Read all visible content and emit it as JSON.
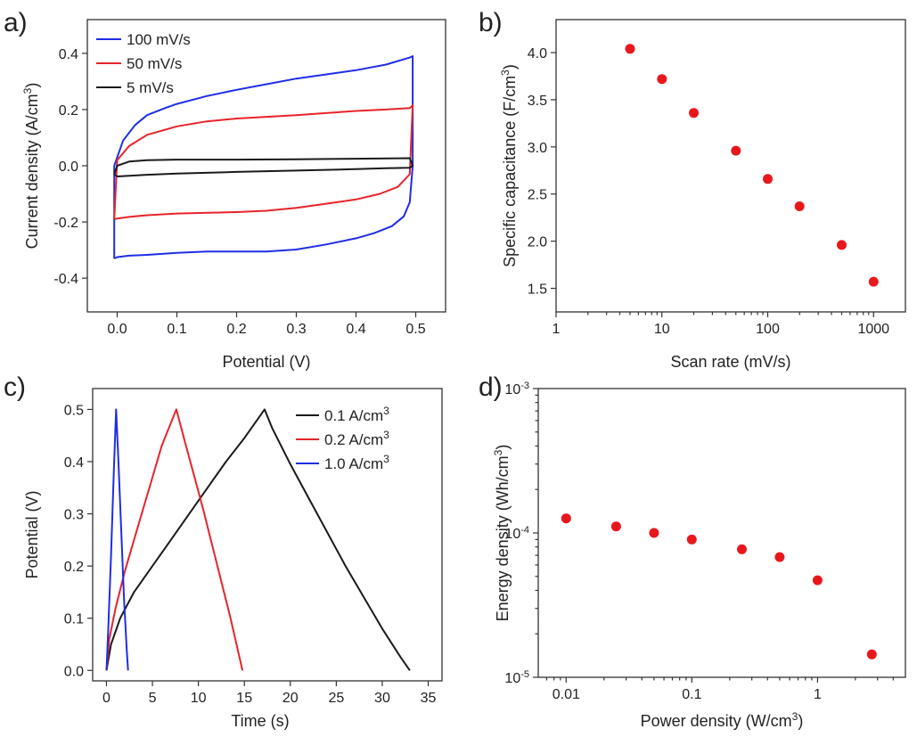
{
  "chart_data": [
    {
      "panel": "a)",
      "type": "line",
      "xlabel": "Potential (V)",
      "ylabel": "Current density (A/cm3)",
      "xlim": [
        -0.05,
        0.55
      ],
      "ylim": [
        -0.52,
        0.52
      ],
      "xticks": [
        "0.0",
        "0.1",
        "0.2",
        "0.3",
        "0.4",
        "0.5"
      ],
      "yticks": [
        "-0.4",
        "-0.2",
        "0.0",
        "0.2",
        "0.4"
      ],
      "legend_position": "top-left",
      "series": [
        {
          "name": "100 mV/s",
          "color": "#1f2de6",
          "x": [
            -0.005,
            -0.005,
            0.01,
            0.03,
            0.05,
            0.08,
            0.1,
            0.15,
            0.2,
            0.25,
            0.3,
            0.35,
            0.4,
            0.45,
            0.49,
            0.495,
            0.495,
            0.49,
            0.48,
            0.46,
            0.43,
            0.4,
            0.35,
            0.3,
            0.25,
            0.2,
            0.15,
            0.1,
            0.05,
            0.02,
            0.0,
            -0.005
          ],
          "y": [
            -0.33,
            0.0,
            0.09,
            0.145,
            0.18,
            0.205,
            0.22,
            0.248,
            0.27,
            0.29,
            0.31,
            0.325,
            0.34,
            0.36,
            0.385,
            0.39,
            0.0,
            -0.13,
            -0.18,
            -0.215,
            -0.24,
            -0.258,
            -0.28,
            -0.298,
            -0.305,
            -0.305,
            -0.305,
            -0.31,
            -0.317,
            -0.32,
            -0.325,
            -0.33
          ]
        },
        {
          "name": "50 mV/s",
          "color": "#e8232a",
          "x": [
            -0.005,
            0.0,
            0.02,
            0.05,
            0.1,
            0.15,
            0.2,
            0.3,
            0.4,
            0.45,
            0.49,
            0.495,
            0.49,
            0.47,
            0.44,
            0.4,
            0.35,
            0.3,
            0.25,
            0.2,
            0.1,
            0.05,
            0.02,
            0.0,
            -0.005
          ],
          "y": [
            -0.19,
            0.02,
            0.07,
            0.11,
            0.14,
            0.158,
            0.168,
            0.18,
            0.195,
            0.2,
            0.205,
            0.215,
            -0.03,
            -0.075,
            -0.1,
            -0.12,
            -0.135,
            -0.15,
            -0.16,
            -0.165,
            -0.17,
            -0.176,
            -0.182,
            -0.188,
            -0.19
          ]
        },
        {
          "name": "5 mV/s",
          "color": "#1a1a1a",
          "x": [
            -0.005,
            0.0,
            0.02,
            0.05,
            0.1,
            0.2,
            0.3,
            0.4,
            0.49,
            0.495,
            0.49,
            0.45,
            0.4,
            0.3,
            0.2,
            0.1,
            0.05,
            0.0,
            -0.005
          ],
          "y": [
            -0.03,
            0.0,
            0.015,
            0.02,
            0.022,
            0.022,
            0.023,
            0.025,
            0.027,
            0.0,
            -0.007,
            -0.009,
            -0.012,
            -0.017,
            -0.022,
            -0.028,
            -0.032,
            -0.038,
            -0.03
          ]
        }
      ]
    },
    {
      "panel": "b)",
      "type": "scatter",
      "xlabel": "Scan rate (mV/s)",
      "ylabel": "Specific capacitance (F/cm3)",
      "xscale": "log",
      "xlim": [
        1,
        2000
      ],
      "ylim": [
        1.25,
        4.35
      ],
      "xticks": [
        "1",
        "10",
        "100",
        "1000"
      ],
      "yticks": [
        "1.5",
        "2.0",
        "2.5",
        "3.0",
        "3.5",
        "4.0"
      ],
      "color": "#e8171c",
      "x": [
        5,
        10,
        20,
        50,
        100,
        200,
        500,
        1000
      ],
      "y": [
        4.04,
        3.72,
        3.36,
        2.96,
        2.66,
        2.37,
        1.96,
        1.57
      ]
    },
    {
      "panel": "c)",
      "type": "line",
      "xlabel": "Time (s)",
      "ylabel": "Potential (V)",
      "xlim": [
        -1.5,
        36.5
      ],
      "ylim": [
        -0.02,
        0.54
      ],
      "xticks": [
        "0",
        "5",
        "10",
        "15",
        "20",
        "25",
        "30",
        "35"
      ],
      "yticks": [
        "0.0",
        "0.1",
        "0.2",
        "0.3",
        "0.4",
        "0.5"
      ],
      "legend_position": "top-right",
      "series": [
        {
          "name": "0.1 A/cm3",
          "color": "#1a1a1a",
          "x": [
            0,
            0.5,
            1.5,
            3,
            5,
            7,
            9,
            11,
            13,
            15,
            17.2,
            18,
            20,
            22,
            24,
            26,
            28,
            30,
            32,
            33
          ],
          "y": [
            0.0,
            0.05,
            0.1,
            0.15,
            0.2,
            0.25,
            0.3,
            0.35,
            0.4,
            0.445,
            0.5,
            0.465,
            0.395,
            0.33,
            0.265,
            0.2,
            0.14,
            0.08,
            0.025,
            0.0
          ]
        },
        {
          "name": "0.2 A/cm3",
          "color": "#e8232a",
          "x": [
            0,
            0.3,
            1,
            2,
            3,
            4,
            5,
            6,
            7.6,
            8.5,
            9.5,
            10.5,
            11.5,
            12.5,
            13.5,
            14.8
          ],
          "y": [
            0.0,
            0.06,
            0.12,
            0.19,
            0.25,
            0.31,
            0.37,
            0.43,
            0.5,
            0.44,
            0.375,
            0.31,
            0.24,
            0.17,
            0.1,
            0.0
          ]
        },
        {
          "name": "1.0 A/cm3",
          "color": "#1f2de6",
          "x": [
            0,
            0.2,
            0.5,
            0.8,
            1.05,
            1.3,
            1.6,
            1.9,
            2.2,
            2.35
          ],
          "y": [
            0.0,
            0.08,
            0.22,
            0.38,
            0.5,
            0.4,
            0.27,
            0.14,
            0.04,
            0.0
          ]
        }
      ]
    },
    {
      "panel": "d)",
      "type": "scatter",
      "xlabel": "Power density (W/cm3)",
      "ylabel": "Energy density (Wh/cm3)",
      "xscale": "log",
      "yscale": "log",
      "xlim": [
        0.006,
        5
      ],
      "ylim": [
        1e-05,
        0.001
      ],
      "xticks": [
        "0.01",
        "0.1",
        "1"
      ],
      "yticks": [
        {
          "base": "10",
          "exp": "-5"
        },
        {
          "base": "10",
          "exp": "-4"
        },
        {
          "base": "10",
          "exp": "-3"
        }
      ],
      "color": "#e8171c",
      "x": [
        0.01,
        0.025,
        0.05,
        0.1,
        0.25,
        0.5,
        1,
        2.7
      ],
      "y": [
        0.000126,
        0.000111,
        0.0001,
        9e-05,
        7.7e-05,
        6.8e-05,
        4.7e-05,
        1.44e-05
      ]
    }
  ]
}
